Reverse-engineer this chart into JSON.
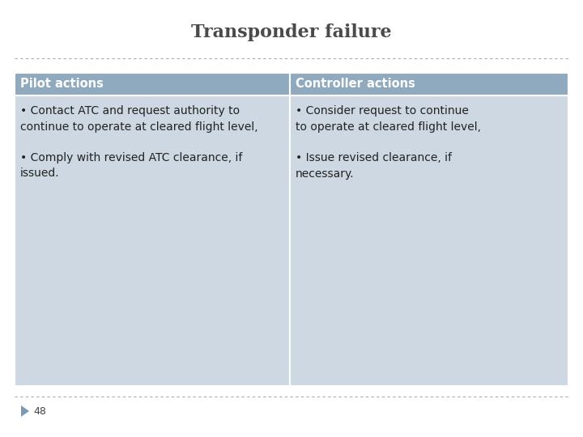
{
  "title": "Transponder failure",
  "title_fontsize": 16,
  "title_color": "#4a4a4a",
  "title_fontweight": "bold",
  "background_color": "#ffffff",
  "header_bg_color": "#8faabf",
  "header_text_color": "#ffffff",
  "cell_bg_color": "#cdd8e3",
  "cell_border_color": "#ffffff",
  "col1_header": "Pilot actions",
  "col2_header": "Controller actions",
  "header_fontsize": 10.5,
  "cell_fontsize": 10,
  "col1_row1": "• Contact ATC and request authority to\ncontinue to operate at cleared flight level,",
  "col1_row2": "• Comply with revised ATC clearance, if\nissued.",
  "col2_row1": "• Consider request to continue\nto operate at cleared flight level,",
  "col2_row2": "• Issue revised clearance, if\nnecessary.",
  "footer_number": "48",
  "dashed_line_color": "#aaaaaa",
  "arrow_color": "#7a9ab5"
}
